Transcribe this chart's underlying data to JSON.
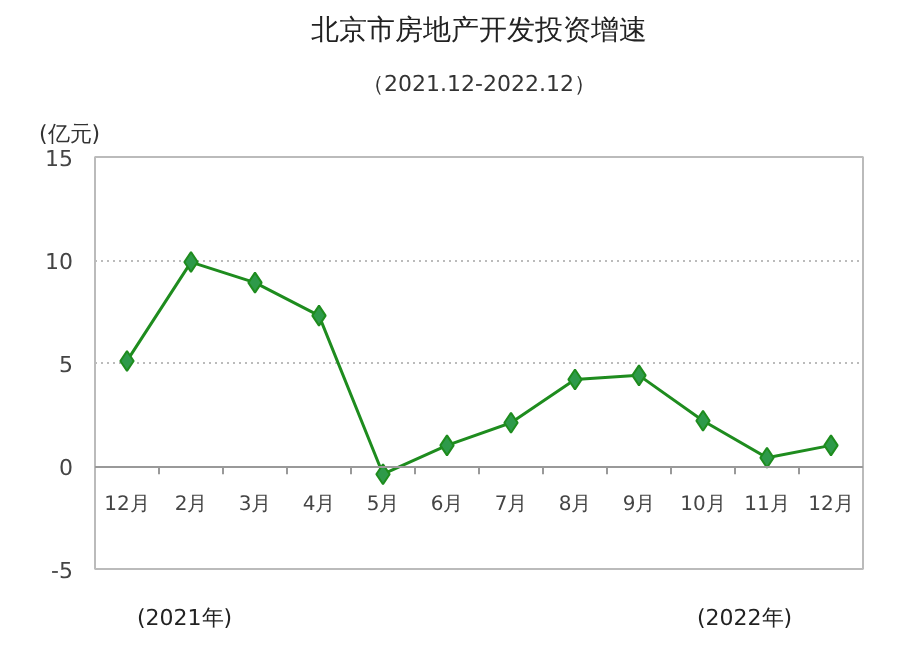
{
  "chart_data": {
    "type": "line",
    "title": "北京市房地产开发投资增速",
    "subtitle": "（2021.12-2022.12）",
    "ylabel": "(亿元)",
    "categories": [
      "12月",
      "2月",
      "3月",
      "4月",
      "5月",
      "6月",
      "7月",
      "8月",
      "9月",
      "10月",
      "11月",
      "12月"
    ],
    "series": [
      {
        "color": "#1e8c1e",
        "values": [
          5.1,
          9.9,
          8.9,
          7.3,
          -0.4,
          1.0,
          2.1,
          4.2,
          4.4,
          2.2,
          0.4,
          1.0
        ]
      }
    ],
    "ylim": [
      -5,
      15
    ],
    "yticks": [
      -5,
      0,
      5,
      10,
      15
    ],
    "grid": "y",
    "marker": "diamond",
    "line_style": "solid",
    "annotations": [
      "(2021年)",
      "(2022年)"
    ]
  }
}
